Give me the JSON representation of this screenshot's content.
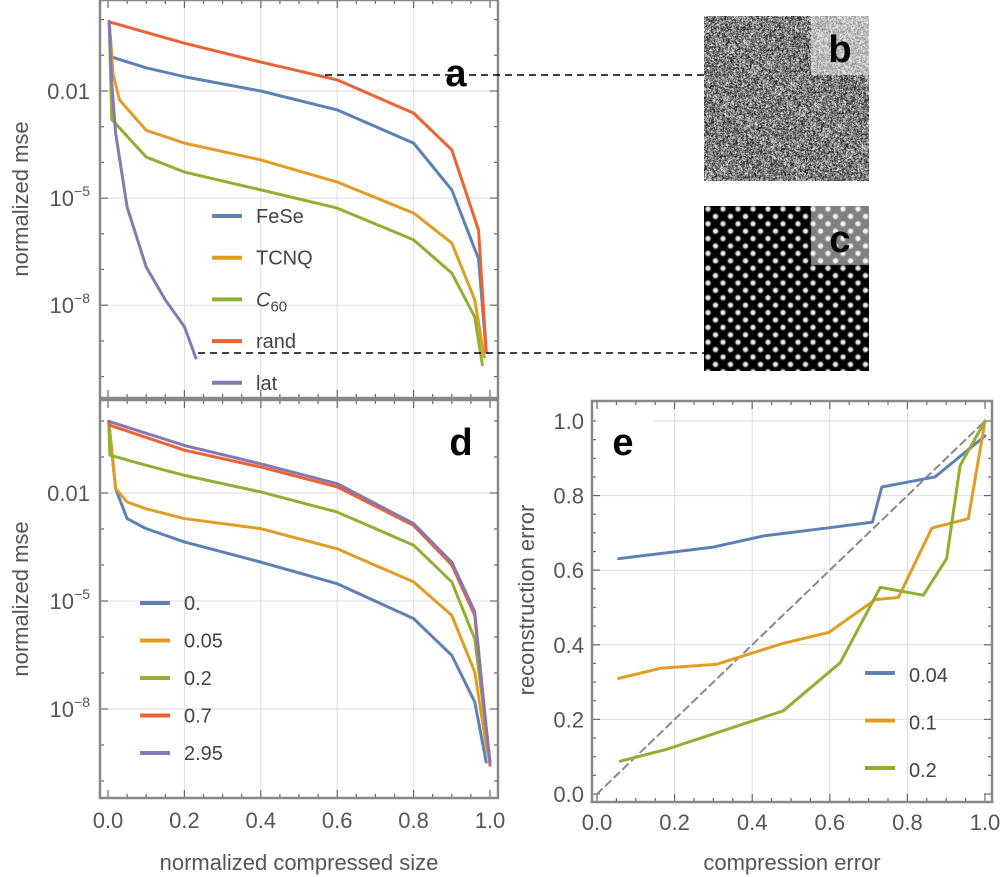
{
  "colors": {
    "blue": "#5e81b5",
    "orange": "#e19c24",
    "green": "#8fb032",
    "red": "#eb6235",
    "purple": "#8778b3"
  },
  "chart_data": [
    {
      "panel": "a",
      "type": "line",
      "ylabel": "normalized mse",
      "xlabel": "",
      "yscale": "log",
      "xlim": [
        -0.02,
        1.02
      ],
      "ylim": [
        3e-11,
        3.5
      ],
      "grid": true,
      "legend": "bottom-left",
      "yticks": [
        {
          "base": "0.01",
          "exp": ""
        },
        {
          "base": "10",
          "exp": "−5"
        },
        {
          "base": "10",
          "exp": "−8"
        }
      ],
      "series": [
        {
          "name": "FeSe",
          "sub": "",
          "color": "blue",
          "x": [
            0.003,
            0.01,
            0.1,
            0.2,
            0.4,
            0.6,
            0.8,
            0.9,
            0.97,
            0.99
          ],
          "log10y": [
            -0.05,
            -1.05,
            -1.35,
            -1.6,
            -2.0,
            -2.53,
            -3.46,
            -4.77,
            -6.7,
            -9.3
          ]
        },
        {
          "name": "TCNQ",
          "sub": "",
          "color": "orange",
          "x": [
            0.003,
            0.013,
            0.03,
            0.1,
            0.2,
            0.4,
            0.6,
            0.8,
            0.9,
            0.96,
            0.985
          ],
          "log10y": [
            -0.05,
            -1.5,
            -2.25,
            -3.1,
            -3.46,
            -3.93,
            -4.55,
            -5.42,
            -6.26,
            -7.85,
            -9.45
          ]
        },
        {
          "name": "C",
          "sub": "60",
          "color": "green",
          "x": [
            0.003,
            0.01,
            0.1,
            0.2,
            0.4,
            0.6,
            0.8,
            0.9,
            0.96,
            0.98
          ],
          "log10y": [
            -0.05,
            -2.8,
            -3.85,
            -4.27,
            -4.77,
            -5.28,
            -6.17,
            -7.1,
            -8.33,
            -9.67
          ]
        },
        {
          "name": "rand",
          "sub": "",
          "color": "red",
          "x": [
            0.005,
            0.2,
            0.4,
            0.6,
            0.8,
            0.9,
            0.97,
            0.99
          ],
          "log10y": [
            -0.07,
            -0.66,
            -1.19,
            -1.69,
            -2.62,
            -3.65,
            -5.9,
            -9.3
          ]
        },
        {
          "name": "lat",
          "sub": "",
          "color": "purple",
          "x": [
            0.003,
            0.01,
            0.02,
            0.05,
            0.1,
            0.15,
            0.2,
            0.23
          ],
          "log10y": [
            -0.05,
            -1.8,
            -3.18,
            -5.25,
            -6.93,
            -7.85,
            -8.6,
            -9.48
          ]
        }
      ]
    },
    {
      "panel": "d",
      "type": "line",
      "ylabel": "normalized mse",
      "xlabel": "normalized compressed size",
      "yscale": "log",
      "xlim": [
        -0.02,
        1.02
      ],
      "ylim": [
        3e-11,
        3.5
      ],
      "grid": true,
      "legend": "bottom-left",
      "xticks": [
        "0.0",
        "0.2",
        "0.4",
        "0.6",
        "0.8",
        "1.0"
      ],
      "yticks": [
        {
          "base": "0.01",
          "exp": ""
        },
        {
          "base": "10",
          "exp": "−5"
        },
        {
          "base": "10",
          "exp": "−8"
        }
      ],
      "series": [
        {
          "name": "0.",
          "color": "blue",
          "x": [
            0.002,
            0.02,
            0.05,
            0.1,
            0.2,
            0.4,
            0.6,
            0.8,
            0.9,
            0.96,
            0.99
          ],
          "log10y": [
            -0.01,
            -1.88,
            -2.71,
            -2.99,
            -3.36,
            -3.92,
            -4.52,
            -5.49,
            -6.51,
            -7.8,
            -9.47
          ]
        },
        {
          "name": "0.05",
          "color": "orange",
          "x": [
            0.002,
            0.02,
            0.05,
            0.1,
            0.2,
            0.4,
            0.6,
            0.8,
            0.9,
            0.96,
            0.99,
            1.0
          ],
          "log10y": [
            -0.01,
            -1.88,
            -2.25,
            -2.44,
            -2.71,
            -2.99,
            -3.55,
            -4.47,
            -5.4,
            -6.97,
            -9.0,
            -9.47
          ]
        },
        {
          "name": "0.2",
          "color": "green",
          "x": [
            0.002,
            0.005,
            0.1,
            0.2,
            0.4,
            0.6,
            0.8,
            0.9,
            0.96,
            0.99,
            1.0
          ],
          "log10y": [
            -0.01,
            -0.95,
            -1.23,
            -1.51,
            -1.97,
            -2.53,
            -3.45,
            -4.47,
            -6.05,
            -8.55,
            -9.47
          ]
        },
        {
          "name": "0.7",
          "color": "red",
          "x": [
            0.002,
            0.005,
            0.2,
            0.4,
            0.6,
            0.8,
            0.9,
            0.96,
            0.99,
            1.0
          ],
          "log10y": [
            -0.01,
            -0.12,
            -0.81,
            -1.28,
            -1.83,
            -2.9,
            -4.0,
            -5.4,
            -8.55,
            -9.56
          ]
        },
        {
          "name": "2.95",
          "color": "purple",
          "x": [
            0.002,
            0.2,
            0.4,
            0.6,
            0.8,
            0.9,
            0.96,
            0.99,
            1.0
          ],
          "log10y": [
            -0.01,
            -0.68,
            -1.19,
            -1.74,
            -2.85,
            -3.92,
            -5.3,
            -8.5,
            -9.47
          ]
        }
      ]
    },
    {
      "panel": "e",
      "type": "line",
      "ylabel": "reconstruction error",
      "xlabel": "compression error",
      "xlim": [
        -0.013,
        1.018
      ],
      "ylim": [
        -0.021,
        1.054
      ],
      "grid": true,
      "legend": "bottom-right",
      "xticks": [
        "0.0",
        "0.2",
        "0.4",
        "0.6",
        "0.8",
        "1.0"
      ],
      "yticks": [
        "0.0",
        "0.2",
        "0.4",
        "0.6",
        "0.8",
        "1.0"
      ],
      "reference_line": {
        "style": "dashed",
        "color": "#888888",
        "x": [
          0,
          1
        ],
        "y": [
          0,
          1
        ]
      },
      "series": [
        {
          "name": "0.04",
          "color": "blue",
          "x": [
            0.056,
            0.3,
            0.43,
            0.6,
            0.71,
            0.734,
            0.871,
            0.918,
            1.0
          ],
          "y": [
            0.631,
            0.662,
            0.692,
            0.714,
            0.729,
            0.823,
            0.85,
            0.89,
            0.96
          ]
        },
        {
          "name": "0.1",
          "color": "orange",
          "x": [
            0.056,
            0.163,
            0.309,
            0.48,
            0.597,
            0.717,
            0.777,
            0.863,
            0.957,
            1.0
          ],
          "y": [
            0.31,
            0.337,
            0.348,
            0.404,
            0.433,
            0.521,
            0.527,
            0.713,
            0.738,
            1.0
          ]
        },
        {
          "name": "0.2",
          "color": "green",
          "x": [
            0.06,
            0.18,
            0.48,
            0.627,
            0.73,
            0.841,
            0.901,
            0.936,
            1.0
          ],
          "y": [
            0.088,
            0.12,
            0.223,
            0.352,
            0.554,
            0.533,
            0.631,
            0.881,
            1.0
          ]
        }
      ]
    }
  ],
  "panels": {
    "a": "a",
    "b": "b",
    "c": "c",
    "d": "d",
    "e": "e"
  }
}
